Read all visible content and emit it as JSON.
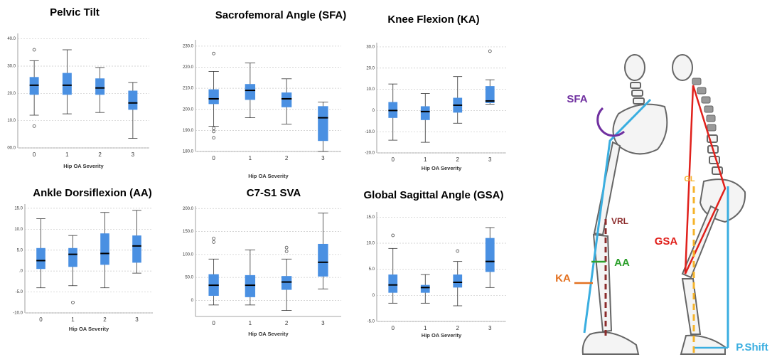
{
  "chart_data": [
    {
      "type": "box",
      "title": "Pelvic Tilt",
      "xlabel": "Hip OA Severity",
      "categories": [
        "0",
        "1",
        "2",
        "3"
      ],
      "color": "#4a90e2",
      "ylim": [
        0,
        42
      ],
      "yticks": [
        {
          "value": 0,
          "label": "00.0"
        },
        {
          "value": 10,
          "label": "10.0"
        },
        {
          "value": 20,
          "label": "20.0"
        },
        {
          "value": 30,
          "label": "30.0"
        },
        {
          "value": 40,
          "label": "40.0"
        }
      ],
      "boxes": [
        {
          "min": 12,
          "q1": 19.5,
          "median": 23,
          "q3": 26,
          "max": 32,
          "outliers": [
            36,
            8
          ]
        },
        {
          "min": 12.5,
          "q1": 19.5,
          "median": 23,
          "q3": 27.5,
          "max": 36,
          "outliers": []
        },
        {
          "min": 13,
          "q1": 19.5,
          "median": 22,
          "q3": 25.5,
          "max": 29.5,
          "outliers": []
        },
        {
          "min": 3.5,
          "q1": 14,
          "median": 16.5,
          "q3": 21,
          "max": 24,
          "outliers": []
        }
      ]
    },
    {
      "type": "box",
      "title": "Sacrofemoral Angle (SFA)",
      "xlabel": "Hip OA Severity",
      "categories": [
        "0",
        "1",
        "2",
        "3"
      ],
      "color": "#4a90e2",
      "ylim": [
        180,
        233
      ],
      "yticks": [
        {
          "value": 180,
          "label": "180.0"
        },
        {
          "value": 190,
          "label": "190.0"
        },
        {
          "value": 200,
          "label": "200.0"
        },
        {
          "value": 210,
          "label": "210.0"
        },
        {
          "value": 220,
          "label": "220.0"
        },
        {
          "value": 230,
          "label": "230.0"
        }
      ],
      "boxes": [
        {
          "min": 192,
          "q1": 202.5,
          "median": 205,
          "q3": 209.5,
          "max": 218,
          "outliers": [
            226.5,
            191,
            189.5,
            186.5
          ]
        },
        {
          "min": 196,
          "q1": 204.5,
          "median": 209,
          "q3": 212,
          "max": 222,
          "outliers": []
        },
        {
          "min": 193,
          "q1": 201,
          "median": 205,
          "q3": 208,
          "max": 214.5,
          "outliers": []
        },
        {
          "min": 180,
          "q1": 185,
          "median": 196,
          "q3": 201.5,
          "max": 203.5,
          "outliers": []
        }
      ]
    },
    {
      "type": "box",
      "title": "Knee Flexion (KA)",
      "xlabel": "Hip OA Severity",
      "categories": [
        "0",
        "1",
        "2",
        "3"
      ],
      "color": "#4a90e2",
      "ylim": [
        -20,
        32
      ],
      "yticks": [
        {
          "value": -20,
          "label": "-20.0"
        },
        {
          "value": -10,
          "label": "-10.0"
        },
        0,
        {
          "value": 10,
          "label": "10.0"
        },
        {
          "value": 20,
          "label": "20.0"
        },
        {
          "value": 30,
          "label": "30.0"
        }
      ],
      "boxes": [
        {
          "min": -14,
          "q1": -3.5,
          "median": 0,
          "q3": 4,
          "max": 12.5,
          "outliers": []
        },
        {
          "min": -15,
          "q1": -4.5,
          "median": -0.5,
          "q3": 2,
          "max": 8,
          "outliers": []
        },
        {
          "min": -6,
          "q1": -1,
          "median": 2.5,
          "q3": 6,
          "max": 16,
          "outliers": []
        },
        {
          "min": 3,
          "q1": 3.5,
          "median": 4.5,
          "q3": 11.5,
          "max": 14.5,
          "outliers": [
            28
          ]
        }
      ]
    },
    {
      "type": "box",
      "title": "Ankle Dorsiflexion (AA)",
      "xlabel": "Hip OA Severity",
      "categories": [
        "0",
        "1",
        "2",
        "3"
      ],
      "color": "#4a90e2",
      "ylim": [
        -10,
        16
      ],
      "yticks": [
        {
          "value": -10,
          "label": "-10.0"
        },
        {
          "value": -5,
          "label": "-5.0"
        },
        {
          "value": 0,
          "label": ".0"
        },
        {
          "value": 5,
          "label": "5.0"
        },
        {
          "value": 10,
          "label": "10.0"
        },
        {
          "value": 15,
          "label": "15.0"
        }
      ],
      "boxes": [
        {
          "min": -4,
          "q1": 0.5,
          "median": 2.5,
          "q3": 5.5,
          "max": 12.5,
          "outliers": []
        },
        {
          "min": -3.5,
          "q1": 1,
          "median": 4,
          "q3": 5.5,
          "max": 8.5,
          "outliers": [
            -7.5
          ]
        },
        {
          "min": -4,
          "q1": 1.5,
          "median": 4.2,
          "q3": 9,
          "max": 14,
          "outliers": []
        },
        {
          "min": -0.5,
          "q1": 2,
          "median": 6,
          "q3": 8.5,
          "max": 14.5,
          "outliers": []
        }
      ]
    },
    {
      "type": "box",
      "title": "C7-S1 SVA",
      "xlabel": "Hip OA Severity",
      "categories": [
        "0",
        "1",
        "2",
        "3"
      ],
      "color": "#4a90e2",
      "ylim": [
        -35,
        205
      ],
      "yticks": [
        0,
        {
          "value": 50,
          "label": "50.0"
        },
        {
          "value": 100,
          "label": "100.0"
        },
        {
          "value": 150,
          "label": "150.0"
        },
        {
          "value": 200,
          "label": "200.0"
        }
      ],
      "boxes": [
        {
          "min": -10,
          "q1": 10,
          "median": 33,
          "q3": 57,
          "max": 90,
          "outliers": [
            127,
            135
          ]
        },
        {
          "min": -10,
          "q1": 7,
          "median": 33,
          "q3": 55,
          "max": 110,
          "outliers": []
        },
        {
          "min": -22,
          "q1": 23,
          "median": 40,
          "q3": 53,
          "max": 90,
          "outliers": [
            107,
            115
          ]
        },
        {
          "min": 25,
          "q1": 52,
          "median": 83,
          "q3": 123,
          "max": 190,
          "outliers": []
        }
      ]
    },
    {
      "type": "box",
      "title": "Global Sagittal Angle (GSA)",
      "xlabel": "Hip OA Severity",
      "categories": [
        "0",
        "1",
        "2",
        "3"
      ],
      "color": "#4a90e2",
      "ylim": [
        -5,
        16
      ],
      "yticks": [
        {
          "value": -5,
          "label": "-5.0"
        },
        0,
        {
          "value": 5,
          "label": "5.0"
        },
        {
          "value": 10,
          "label": "10.0"
        },
        {
          "value": 15,
          "label": "15.0"
        }
      ],
      "boxes": [
        {
          "min": -1.5,
          "q1": 0.5,
          "median": 2,
          "q3": 4,
          "max": 9,
          "outliers": [
            11.5
          ]
        },
        {
          "min": -1.5,
          "q1": 0.5,
          "median": 1.5,
          "q3": 2,
          "max": 4,
          "outliers": []
        },
        {
          "min": -2,
          "q1": 1.5,
          "median": 2.5,
          "q3": 4,
          "max": 6.5,
          "outliers": [
            8.5
          ]
        },
        {
          "min": 1.5,
          "q1": 4.5,
          "median": 6.5,
          "q3": 11,
          "max": 13,
          "outliers": []
        }
      ]
    }
  ],
  "diagram": {
    "labels": [
      "SFA",
      "KA",
      "AA",
      "VRL",
      "GSA",
      "GL",
      "P.Shift"
    ]
  }
}
